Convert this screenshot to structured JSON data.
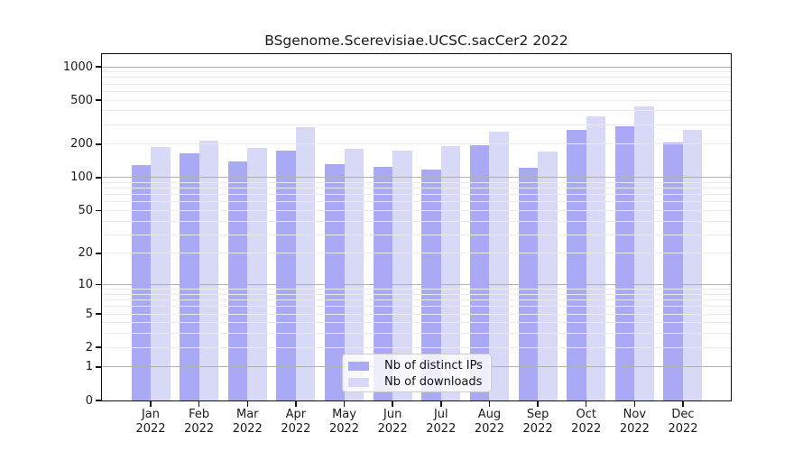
{
  "title": "BSgenome.Scerevisiae.UCSC.sacCer2 2022",
  "background": "#ffffff",
  "axis_color": "#111111",
  "text_color": "#1a1a1a",
  "chart_data": {
    "type": "bar",
    "title": "BSgenome.Scerevisiae.UCSC.sacCer2 2022",
    "y_scale": "log1p",
    "ylim": [
      0,
      1300
    ],
    "y_ticks": [
      0,
      1,
      2,
      5,
      10,
      20,
      50,
      100,
      200,
      500,
      1000
    ],
    "x_year": "2022",
    "categories": [
      "Jan",
      "Feb",
      "Mar",
      "Apr",
      "May",
      "Jun",
      "Jul",
      "Aug",
      "Sep",
      "Oct",
      "Nov",
      "Dec"
    ],
    "series": [
      {
        "name": "Nb of distinct IPs",
        "color": "#a9a9f5",
        "values": [
          130,
          166,
          141,
          176,
          133,
          126,
          119,
          196,
          123,
          270,
          292,
          208
        ]
      },
      {
        "name": "Nb of downloads",
        "color": "#d8d8f7",
        "values": [
          190,
          216,
          186,
          287,
          183,
          176,
          192,
          261,
          172,
          357,
          440,
          271
        ]
      }
    ],
    "grid": {
      "major_lines": [
        1,
        10,
        100,
        1000
      ],
      "major_color": "#b0b0b0",
      "minor_color": "#ebebeb"
    },
    "legend": {
      "position": "inside-bottom-center",
      "entries": [
        "Nb of distinct IPs",
        "Nb of downloads"
      ]
    }
  }
}
